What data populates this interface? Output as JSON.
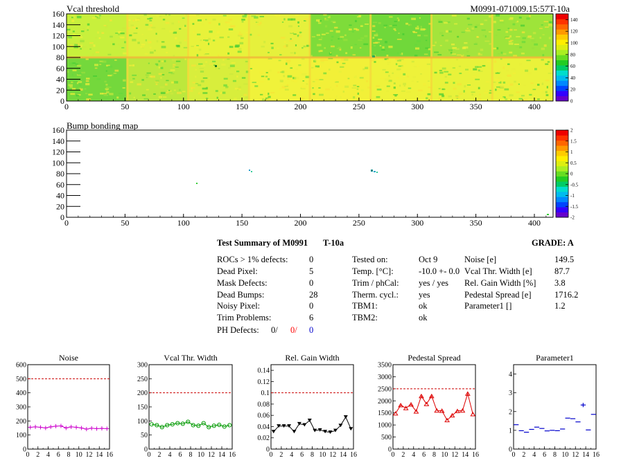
{
  "header": {
    "title": "Vcal threshold",
    "module_id": "M0991-071009.15:57T-10a"
  },
  "map1": {
    "title": "Vcal threshold",
    "y_ticks": [
      "160",
      "140",
      "120",
      "100",
      "80",
      "60",
      "40",
      "20",
      "0"
    ],
    "x_ticks": [
      "0",
      "50",
      "100",
      "150",
      "200",
      "250",
      "300",
      "350",
      "400"
    ],
    "colorbar_ticks": [
      "140",
      "120",
      "100",
      "80",
      "60",
      "40",
      "20",
      "0"
    ],
    "xlim": [
      0,
      416
    ],
    "ylim": [
      0,
      160
    ],
    "zlim": [
      0,
      150
    ]
  },
  "map2": {
    "title": "Bump bonding map",
    "y_ticks": [
      "160",
      "140",
      "120",
      "100",
      "80",
      "60",
      "40",
      "20",
      "0"
    ],
    "x_ticks": [
      "0",
      "50",
      "100",
      "150",
      "200",
      "250",
      "300",
      "350",
      "400"
    ],
    "colorbar_ticks": [
      "2",
      "1.5",
      "1",
      "0.5",
      "0",
      "-0.5",
      "-1",
      "-1.5",
      "-2"
    ],
    "xlim": [
      0,
      416
    ],
    "ylim": [
      0,
      160
    ],
    "zlim": [
      -2,
      2
    ]
  },
  "summary": {
    "title": "Test Summary of M0991",
    "temp_label": "T-10a",
    "grade_label": "GRADE:  A",
    "col1": [
      {
        "label": "ROCs > 1% defects:",
        "value": "0"
      },
      {
        "label": "Dead Pixel:",
        "value": "5"
      },
      {
        "label": "Mask Defects:",
        "value": "0"
      },
      {
        "label": "Dead Bumps:",
        "value": "28"
      },
      {
        "label": "Noisy Pixel:",
        "value": "0"
      },
      {
        "label": "Trim Problems:",
        "value": "6"
      }
    ],
    "ph_label": "PH Defects:",
    "ph_values": [
      "0/",
      "0/",
      "0"
    ],
    "ph_colors": [
      "#000000",
      "#ff0000",
      "#0000cc"
    ],
    "col2": [
      {
        "label": "Tested on:",
        "value": "Oct 9"
      },
      {
        "label": "Temp. [°C]:",
        "value": "-10.0 +- 0.0"
      },
      {
        "label": "Trim / phCal:",
        "value": "yes / yes"
      },
      {
        "label": "Therm. cycl.:",
        "value": "yes"
      },
      {
        "label": "TBM1:",
        "value": "ok"
      },
      {
        "label": "TBM2:",
        "value": "ok"
      }
    ],
    "col3": [
      {
        "label": "Noise [e]",
        "value": "149.5"
      },
      {
        "label": "Vcal Thr. Width [e]",
        "value": "87.7"
      },
      {
        "label": "Rel. Gain Width [%]",
        "value": "3.8"
      },
      {
        "label": "Pedestal Spread [e]",
        "value": "1716.2"
      },
      {
        "label": "Parameter1 []",
        "value": "1.2"
      }
    ]
  },
  "chart_data": [
    {
      "type": "line",
      "title": "Noise",
      "color": "#cc00cc",
      "marker": "plus",
      "x_ticks": [
        "0",
        "2",
        "4",
        "6",
        "8",
        "10",
        "12",
        "14",
        "16"
      ],
      "y_ticks": [
        "600",
        "500",
        "400",
        "300",
        "200",
        "100",
        "0"
      ],
      "xlim": [
        0,
        16
      ],
      "ylim": [
        0,
        600
      ],
      "ref_line": 500,
      "x": [
        0,
        1,
        2,
        3,
        4,
        5,
        6,
        7,
        8,
        9,
        10,
        11,
        12,
        13,
        14,
        15
      ],
      "values": [
        155,
        158,
        155,
        150,
        158,
        163,
        165,
        150,
        158,
        155,
        150,
        142,
        148,
        145,
        147,
        145
      ]
    },
    {
      "type": "line",
      "title": "Vcal Thr. Width",
      "color": "#009900",
      "marker": "circle",
      "x_ticks": [
        "0",
        "2",
        "4",
        "6",
        "8",
        "10",
        "12",
        "14",
        "16"
      ],
      "y_ticks": [
        "300",
        "250",
        "200",
        "150",
        "100",
        "50",
        "0"
      ],
      "xlim": [
        0,
        16
      ],
      "ylim": [
        0,
        300
      ],
      "ref_line": 200,
      "x": [
        0,
        1,
        2,
        3,
        4,
        5,
        6,
        7,
        8,
        9,
        10,
        11,
        12,
        13,
        14,
        15
      ],
      "values": [
        88,
        85,
        78,
        85,
        88,
        92,
        90,
        97,
        85,
        83,
        92,
        78,
        83,
        86,
        80,
        85
      ]
    },
    {
      "type": "line",
      "title": "Rel. Gain Width",
      "color": "#000000",
      "marker": "triangle-down",
      "x_ticks": [
        "0",
        "2",
        "4",
        "6",
        "8",
        "10",
        "12",
        "14",
        "16"
      ],
      "y_ticks": [
        "0.14",
        "0.12",
        "0.1",
        "0.08",
        "0.06",
        "0.04",
        "0.02",
        "0"
      ],
      "xlim": [
        0,
        16
      ],
      "ylim": [
        0,
        0.15
      ],
      "ref_line": 0.1,
      "x": [
        0,
        1,
        2,
        3,
        4,
        5,
        6,
        7,
        8,
        9,
        10,
        11,
        12,
        13,
        14,
        15
      ],
      "values": [
        0.031,
        0.041,
        0.041,
        0.041,
        0.031,
        0.045,
        0.043,
        0.051,
        0.033,
        0.034,
        0.031,
        0.03,
        0.033,
        0.042,
        0.057,
        0.036
      ]
    },
    {
      "type": "line",
      "title": "Pedestal Spread",
      "color": "#dd0000",
      "marker": "triangle-up",
      "x_ticks": [
        "0",
        "2",
        "4",
        "6",
        "8",
        "10",
        "12",
        "14",
        "16"
      ],
      "y_ticks": [
        "3500",
        "3000",
        "2500",
        "2000",
        "1500",
        "1000",
        "500",
        "0"
      ],
      "xlim": [
        0,
        16
      ],
      "ylim": [
        0,
        3500
      ],
      "ref_line": 2500,
      "x": [
        0,
        1,
        2,
        3,
        4,
        5,
        6,
        7,
        8,
        9,
        10,
        11,
        12,
        13,
        14,
        15
      ],
      "values": [
        1480,
        1820,
        1700,
        1850,
        1560,
        2200,
        1870,
        2200,
        1600,
        1590,
        1200,
        1400,
        1580,
        1600,
        2300,
        1450
      ]
    },
    {
      "type": "scatter",
      "title": "Parameter1",
      "color": "#0000cc",
      "marker": "hbar",
      "x_ticks": [
        "0",
        "2",
        "4",
        "6",
        "8",
        "10",
        "12",
        "14",
        "16"
      ],
      "y_ticks": [
        "4",
        "3",
        "2",
        "1",
        "0"
      ],
      "xlim": [
        0,
        16
      ],
      "ylim": [
        0,
        4.5
      ],
      "x": [
        0,
        1,
        2,
        3,
        4,
        5,
        6,
        7,
        8,
        9,
        10,
        11,
        12,
        13,
        14,
        15
      ],
      "values": [
        1.3,
        0.98,
        0.9,
        1.05,
        1.17,
        1.1,
        0.97,
        1.0,
        0.98,
        1.07,
        1.65,
        1.62,
        1.45,
        2.35,
        1.02,
        1.85
      ]
    }
  ],
  "colors": {
    "ref_line": "#cc0000",
    "axis": "#000000"
  }
}
